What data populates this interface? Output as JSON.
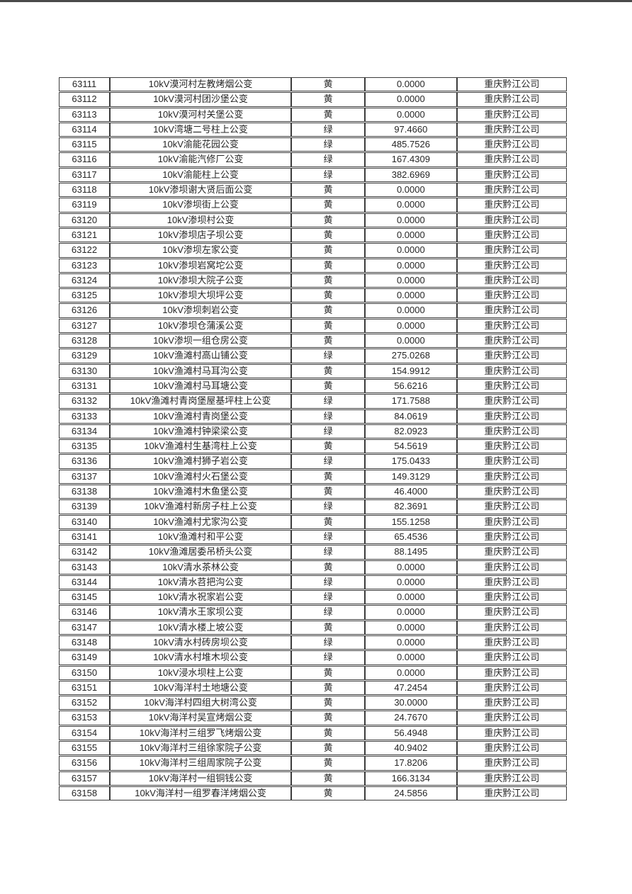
{
  "colors": {
    "border": "#3c3c3c",
    "text": "#262626",
    "top_rule": "#4a4a4a",
    "page_background": "#ffffff"
  },
  "table": {
    "columns": [
      "id",
      "name",
      "status",
      "value",
      "company"
    ],
    "rows": [
      {
        "id": "63111",
        "name": "10kV漠河村左教烤烟公变",
        "status": "黄",
        "value": "0.0000",
        "company": "重庆黔江公司"
      },
      {
        "id": "63112",
        "name": "10kV漠河村团沙堡公变",
        "status": "黄",
        "value": "0.0000",
        "company": "重庆黔江公司"
      },
      {
        "id": "63113",
        "name": "10kV漠河村关堡公变",
        "status": "黄",
        "value": "0.0000",
        "company": "重庆黔江公司"
      },
      {
        "id": "63114",
        "name": "10kV湾塘二号柱上公变",
        "status": "绿",
        "value": "97.4660",
        "company": "重庆黔江公司"
      },
      {
        "id": "63115",
        "name": "10kV渝能花园公变",
        "status": "绿",
        "value": "485.7526",
        "company": "重庆黔江公司"
      },
      {
        "id": "63116",
        "name": "10kV渝能汽修厂公变",
        "status": "绿",
        "value": "167.4309",
        "company": "重庆黔江公司"
      },
      {
        "id": "63117",
        "name": "10kV渝能柱上公变",
        "status": "绿",
        "value": "382.6969",
        "company": "重庆黔江公司"
      },
      {
        "id": "63118",
        "name": "10kV渗坝谢大贤后面公变",
        "status": "黄",
        "value": "0.0000",
        "company": "重庆黔江公司"
      },
      {
        "id": "63119",
        "name": "10kV渗坝街上公变",
        "status": "黄",
        "value": "0.0000",
        "company": "重庆黔江公司"
      },
      {
        "id": "63120",
        "name": "10kV渗坝村公变",
        "status": "黄",
        "value": "0.0000",
        "company": "重庆黔江公司"
      },
      {
        "id": "63121",
        "name": "10kV渗坝店子坝公变",
        "status": "黄",
        "value": "0.0000",
        "company": "重庆黔江公司"
      },
      {
        "id": "63122",
        "name": "10kV渗坝左家公变",
        "status": "黄",
        "value": "0.0000",
        "company": "重庆黔江公司"
      },
      {
        "id": "63123",
        "name": "10kV渗坝岩窝坨公变",
        "status": "黄",
        "value": "0.0000",
        "company": "重庆黔江公司"
      },
      {
        "id": "63124",
        "name": "10kV渗坝大院子公变",
        "status": "黄",
        "value": "0.0000",
        "company": "重庆黔江公司"
      },
      {
        "id": "63125",
        "name": "10kV渗坝大坝坪公变",
        "status": "黄",
        "value": "0.0000",
        "company": "重庆黔江公司"
      },
      {
        "id": "63126",
        "name": "10kV渗坝刺岩公变",
        "status": "黄",
        "value": "0.0000",
        "company": "重庆黔江公司"
      },
      {
        "id": "63127",
        "name": "10kV渗坝仓蒲溪公变",
        "status": "黄",
        "value": "0.0000",
        "company": "重庆黔江公司"
      },
      {
        "id": "63128",
        "name": "10kV渗坝一组仓房公变",
        "status": "黄",
        "value": "0.0000",
        "company": "重庆黔江公司"
      },
      {
        "id": "63129",
        "name": "10kV渔滩村高山铺公变",
        "status": "绿",
        "value": "275.0268",
        "company": "重庆黔江公司"
      },
      {
        "id": "63130",
        "name": "10kV渔滩村马耳沟公变",
        "status": "黄",
        "value": "154.9912",
        "company": "重庆黔江公司"
      },
      {
        "id": "63131",
        "name": "10kV渔滩村马耳塘公变",
        "status": "黄",
        "value": "56.6216",
        "company": "重庆黔江公司"
      },
      {
        "id": "63132",
        "name": "10kV渔滩村青岗堡屋基坪柱上公变",
        "status": "绿",
        "value": "171.7588",
        "company": "重庆黔江公司"
      },
      {
        "id": "63133",
        "name": "10kV渔滩村青岗堡公变",
        "status": "绿",
        "value": "84.0619",
        "company": "重庆黔江公司"
      },
      {
        "id": "63134",
        "name": "10kV渔滩村钟梁梁公变",
        "status": "绿",
        "value": "82.0923",
        "company": "重庆黔江公司"
      },
      {
        "id": "63135",
        "name": "10kV渔滩村生基湾柱上公变",
        "status": "黄",
        "value": "54.5619",
        "company": "重庆黔江公司"
      },
      {
        "id": "63136",
        "name": "10kV渔滩村狮子岩公变",
        "status": "绿",
        "value": "175.0433",
        "company": "重庆黔江公司"
      },
      {
        "id": "63137",
        "name": "10kV渔滩村火石堡公变",
        "status": "黄",
        "value": "149.3129",
        "company": "重庆黔江公司"
      },
      {
        "id": "63138",
        "name": "10kV渔滩村木鱼堡公变",
        "status": "黄",
        "value": "46.4000",
        "company": "重庆黔江公司"
      },
      {
        "id": "63139",
        "name": "10kV渔滩村新房子柱上公变",
        "status": "绿",
        "value": "82.3691",
        "company": "重庆黔江公司"
      },
      {
        "id": "63140",
        "name": "10kV渔滩村尤家沟公变",
        "status": "黄",
        "value": "155.1258",
        "company": "重庆黔江公司"
      },
      {
        "id": "63141",
        "name": "10kV渔滩村和平公变",
        "status": "绿",
        "value": "65.4536",
        "company": "重庆黔江公司"
      },
      {
        "id": "63142",
        "name": "10kV渔滩居委吊桥头公变",
        "status": "绿",
        "value": "88.1495",
        "company": "重庆黔江公司"
      },
      {
        "id": "63143",
        "name": "10kV清水茶林公变",
        "status": "黄",
        "value": "0.0000",
        "company": "重庆黔江公司"
      },
      {
        "id": "63144",
        "name": "10kV清水苕把沟公变",
        "status": "绿",
        "value": "0.0000",
        "company": "重庆黔江公司"
      },
      {
        "id": "63145",
        "name": "10kV清水祝家岩公变",
        "status": "绿",
        "value": "0.0000",
        "company": "重庆黔江公司"
      },
      {
        "id": "63146",
        "name": "10kV清水王家坝公变",
        "status": "绿",
        "value": "0.0000",
        "company": "重庆黔江公司"
      },
      {
        "id": "63147",
        "name": "10kV清水楼上坡公变",
        "status": "黄",
        "value": "0.0000",
        "company": "重庆黔江公司"
      },
      {
        "id": "63148",
        "name": "10kV清水村砖房坝公变",
        "status": "绿",
        "value": "0.0000",
        "company": "重庆黔江公司"
      },
      {
        "id": "63149",
        "name": "10kV清水村堆木坝公变",
        "status": "绿",
        "value": "0.0000",
        "company": "重庆黔江公司"
      },
      {
        "id": "63150",
        "name": "10kV浸水坝柱上公变",
        "status": "黄",
        "value": "0.0000",
        "company": "重庆黔江公司"
      },
      {
        "id": "63151",
        "name": "10kV海洋村土地塘公变",
        "status": "黄",
        "value": "47.2454",
        "company": "重庆黔江公司"
      },
      {
        "id": "63152",
        "name": "10kV海洋村四组大树湾公变",
        "status": "黄",
        "value": "30.0000",
        "company": "重庆黔江公司"
      },
      {
        "id": "63153",
        "name": "10kV海洋村吴宣烤烟公变",
        "status": "黄",
        "value": "24.7670",
        "company": "重庆黔江公司"
      },
      {
        "id": "63154",
        "name": "10kV海洋村三组罗飞烤烟公变",
        "status": "黄",
        "value": "56.4948",
        "company": "重庆黔江公司"
      },
      {
        "id": "63155",
        "name": "10kV海洋村三组徐家院子公变",
        "status": "黄",
        "value": "40.9402",
        "company": "重庆黔江公司"
      },
      {
        "id": "63156",
        "name": "10kV海洋村三组周家院子公变",
        "status": "黄",
        "value": "17.8206",
        "company": "重庆黔江公司"
      },
      {
        "id": "63157",
        "name": "10kV海洋村一组铜钱公变",
        "status": "黄",
        "value": "166.3134",
        "company": "重庆黔江公司"
      },
      {
        "id": "63158",
        "name": "10kV海洋村一组罗春洋烤烟公变",
        "status": "黄",
        "value": "24.5856",
        "company": "重庆黔江公司"
      }
    ]
  }
}
